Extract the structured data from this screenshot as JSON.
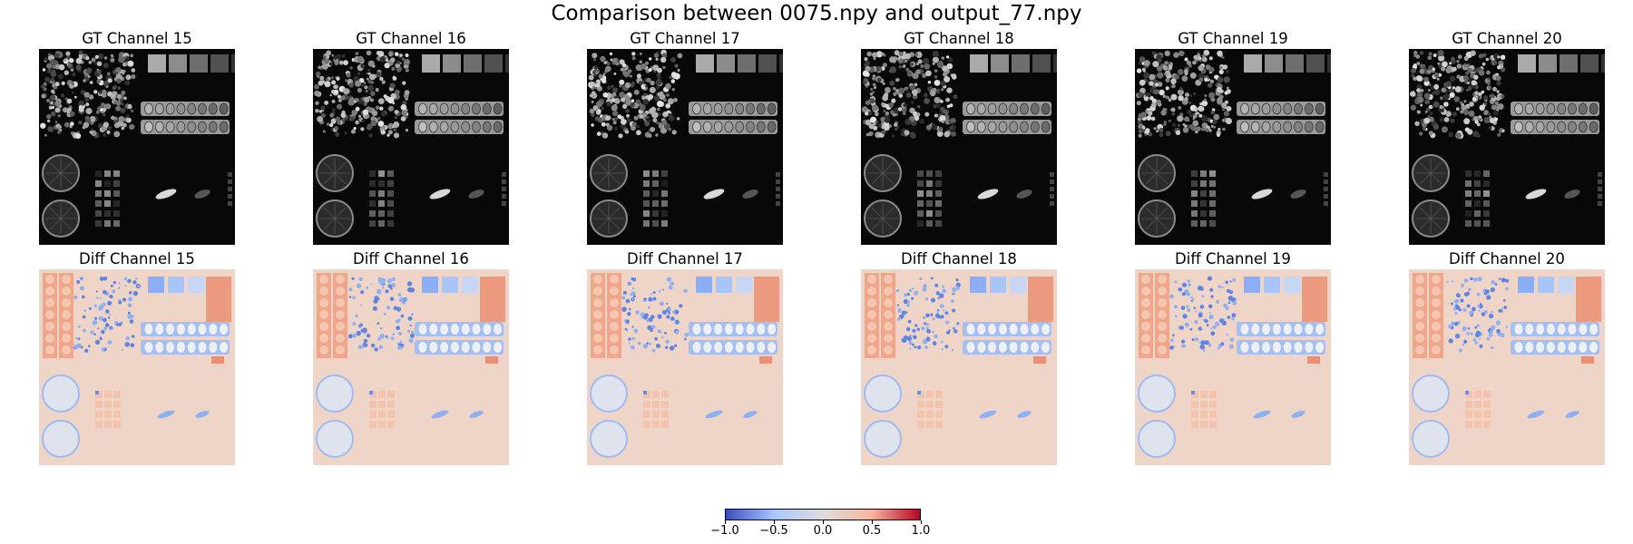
{
  "figure": {
    "title": "Comparison between 0075.npy and output_77.npy"
  },
  "chart_data": {
    "type": "heatmap",
    "title": "Comparison between 0075.npy and output_77.npy",
    "panels": [
      {
        "row": "gt",
        "title": "GT Channel 15",
        "channel": 15
      },
      {
        "row": "gt",
        "title": "GT Channel 16",
        "channel": 16
      },
      {
        "row": "gt",
        "title": "GT Channel 17",
        "channel": 17
      },
      {
        "row": "gt",
        "title": "GT Channel 18",
        "channel": 18
      },
      {
        "row": "gt",
        "title": "GT Channel 19",
        "channel": 19
      },
      {
        "row": "gt",
        "title": "GT Channel 20",
        "channel": 20
      },
      {
        "row": "diff",
        "title": "Diff Channel 15",
        "channel": 15
      },
      {
        "row": "diff",
        "title": "Diff Channel 16",
        "channel": 16
      },
      {
        "row": "diff",
        "title": "Diff Channel 17",
        "channel": 17
      },
      {
        "row": "diff",
        "title": "Diff Channel 18",
        "channel": 18
      },
      {
        "row": "diff",
        "title": "Diff Channel 19",
        "channel": 19
      },
      {
        "row": "diff",
        "title": "Diff Channel 20",
        "channel": 20
      }
    ],
    "gt_colormap": "gray",
    "diff_colormap": "coolwarm",
    "colorbar": {
      "range": [
        -1.0,
        1.0
      ],
      "ticks": [
        "−1.0",
        "−0.5",
        "0.0",
        "0.5",
        "1.0"
      ],
      "tick_values": [
        -1.0,
        -0.5,
        0.0,
        0.5,
        1.0
      ],
      "colors": [
        "#3b4cc0",
        "#aac7fd",
        "#dddddd",
        "#f7b89c",
        "#b40426"
      ]
    },
    "grid": false,
    "axes_visible": false
  }
}
